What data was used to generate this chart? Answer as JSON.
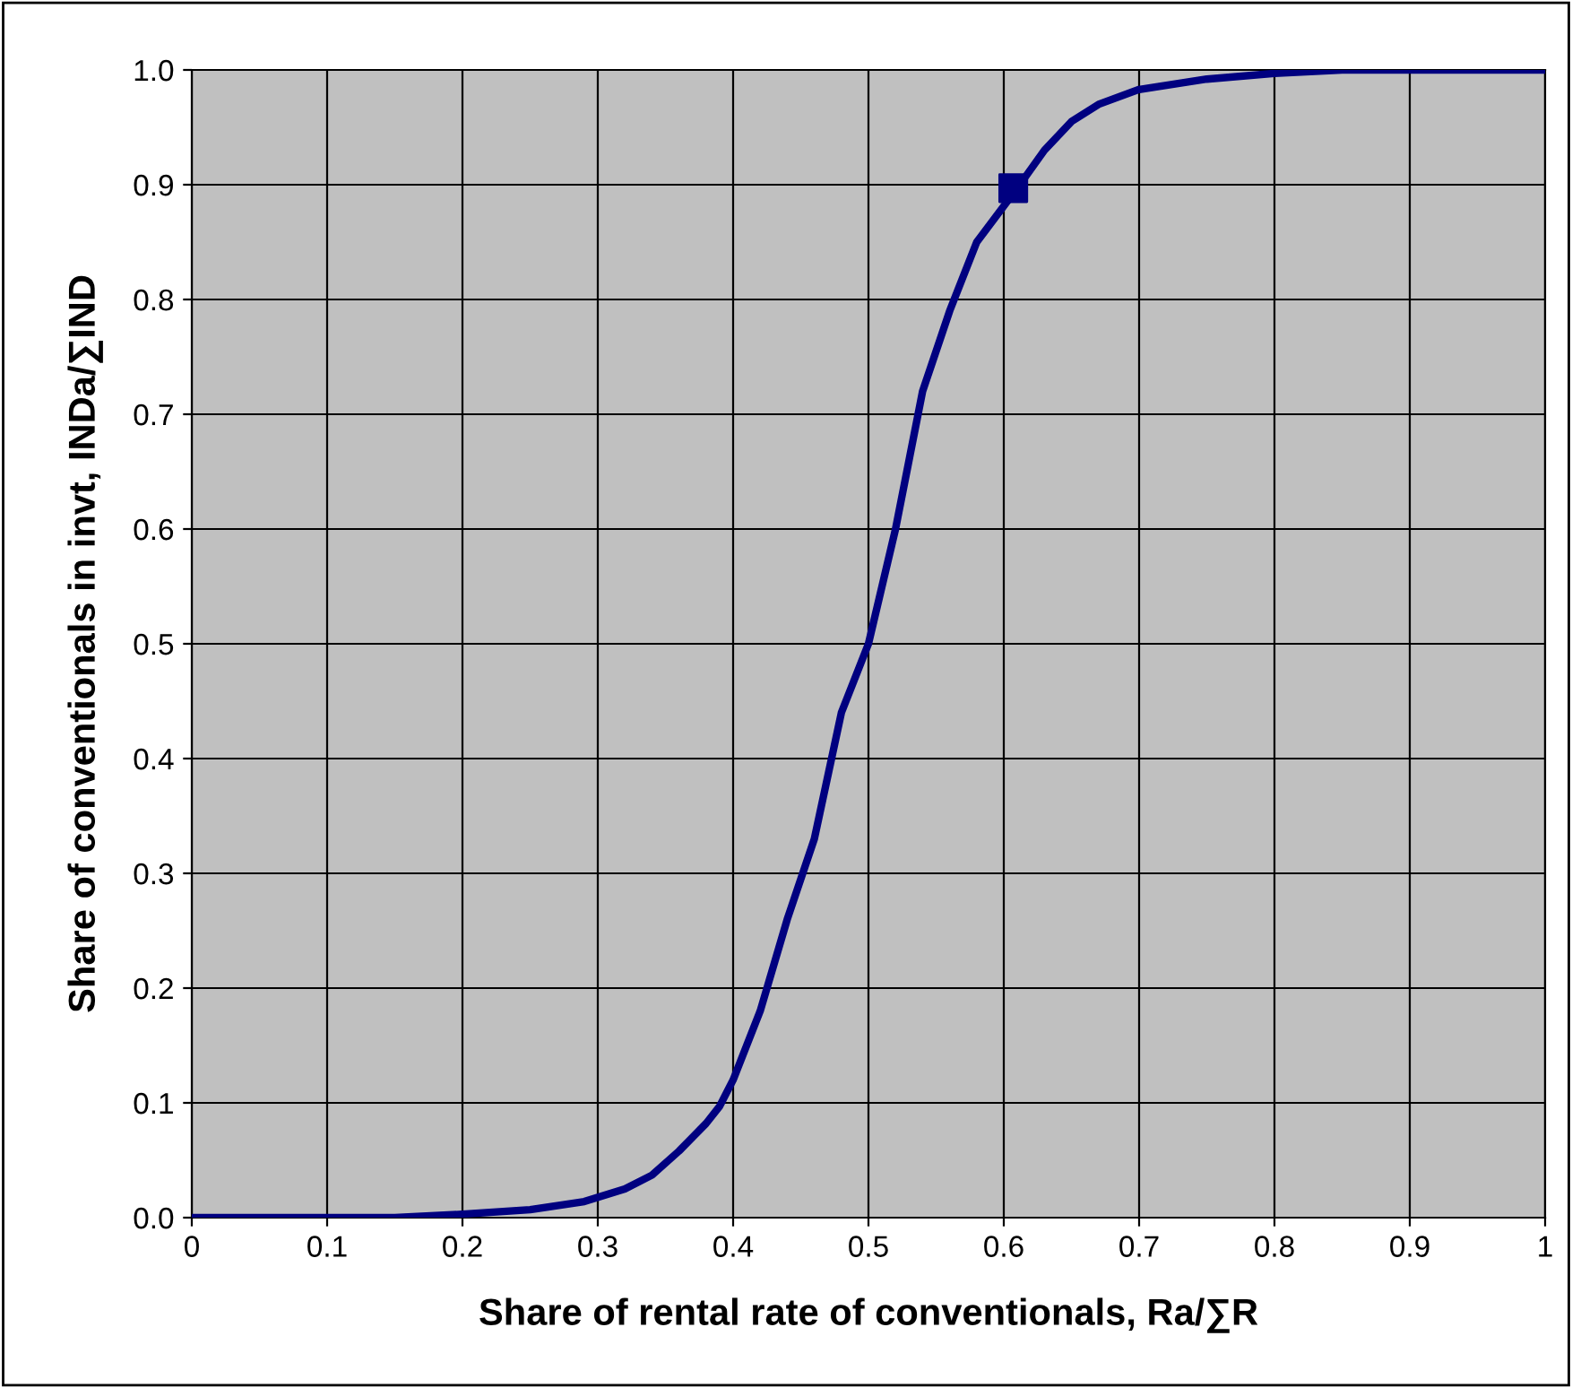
{
  "chart_data": {
    "type": "line",
    "xlabel": "Share of rental rate of conventionals, Ra/∑R",
    "ylabel": "Share of conventionals in invt, INDa/∑IND",
    "xlim": [
      0,
      1
    ],
    "ylim": [
      0,
      1
    ],
    "xticks": [
      0,
      0.1,
      0.2,
      0.3,
      0.4,
      0.5,
      0.6,
      0.7,
      0.8,
      0.9,
      1
    ],
    "yticks": [
      {
        "value": 0,
        "label": "0.0"
      },
      0.1,
      0.2,
      0.3,
      0.4,
      0.5,
      0.6,
      0.7,
      0.8,
      0.9,
      {
        "value": 1,
        "label": "1.0"
      }
    ],
    "grid": true,
    "series": [
      {
        "color": "#000080",
        "marker": "none",
        "line_style": "solid",
        "x": [
          0,
          0.1,
          0.15,
          0.2,
          0.25,
          0.29,
          0.32,
          0.34,
          0.36,
          0.38,
          0.39,
          0.4,
          0.42,
          0.44,
          0.46,
          0.48,
          0.5,
          0.52,
          0.54,
          0.56,
          0.58,
          0.61,
          0.63,
          0.65,
          0.67,
          0.7,
          0.75,
          0.8,
          0.85,
          0.9,
          1
        ],
        "values": [
          0,
          0,
          0,
          0.003,
          0.007,
          0.014,
          0.025,
          0.037,
          0.058,
          0.082,
          0.097,
          0.12,
          0.18,
          0.26,
          0.33,
          0.44,
          0.5,
          0.6,
          0.72,
          0.79,
          0.85,
          0.897,
          0.93,
          0.955,
          0.97,
          0.983,
          0.992,
          0.997,
          1,
          1,
          1
        ]
      },
      {
        "type": "scatter",
        "color": "#000080",
        "marker": "square",
        "x": [
          0.607
        ],
        "values": [
          0.897
        ]
      }
    ]
  }
}
